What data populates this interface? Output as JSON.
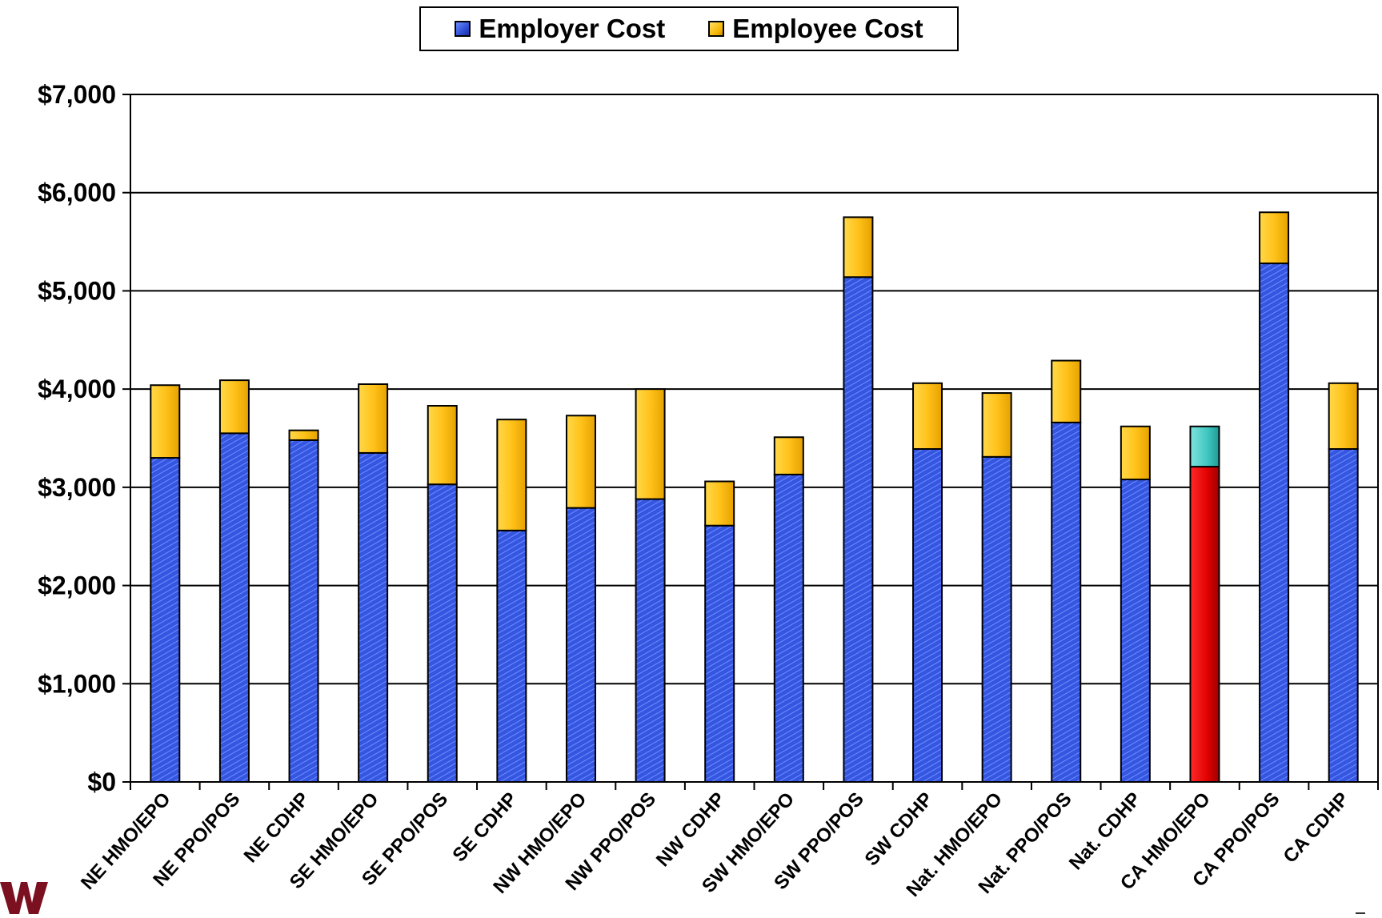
{
  "chart_data": {
    "type": "bar",
    "stacked": true,
    "categories": [
      "NE HMO/EPO",
      "NE PPO/POS",
      "NE CDHP",
      "SE HMO/EPO",
      "SE PPO/POS",
      "SE CDHP",
      "NW HMO/EPO",
      "NW PPO/POS",
      "NW CDHP",
      "SW HMO/EPO",
      "SW PPO/POS",
      "SW CDHP",
      "Nat. HMO/EPO",
      "Nat. PPO/POS",
      "Nat. CDHP",
      "CA HMO/EPO",
      "CA PPO/POS",
      "CA CDHP"
    ],
    "series": [
      {
        "name": "Employer Cost",
        "values": [
          3300,
          3550,
          3480,
          3350,
          3030,
          2560,
          2790,
          2880,
          2610,
          3130,
          5140,
          3390,
          3310,
          3660,
          3080,
          3210,
          5280,
          3390
        ]
      },
      {
        "name": "Employee Cost",
        "values": [
          740,
          540,
          100,
          700,
          800,
          1130,
          940,
          1120,
          450,
          380,
          610,
          670,
          650,
          630,
          540,
          410,
          520,
          670
        ]
      }
    ],
    "highlight": {
      "category": "CA HMO/EPO",
      "employer_color": "#e00000",
      "employee_color": "#3fc6c0"
    },
    "yticks": [
      "$0",
      "$1,000",
      "$2,000",
      "$3,000",
      "$4,000",
      "$5,000",
      "$6,000",
      "$7,000"
    ],
    "ylim": [
      0,
      7000
    ],
    "grid": true,
    "legend_position": "top-center",
    "colors": {
      "employer": "#2f4fd6",
      "employee": "#f4b400"
    }
  },
  "legend": {
    "employer_label": "Employer Cost",
    "employee_label": "Employee Cost"
  }
}
